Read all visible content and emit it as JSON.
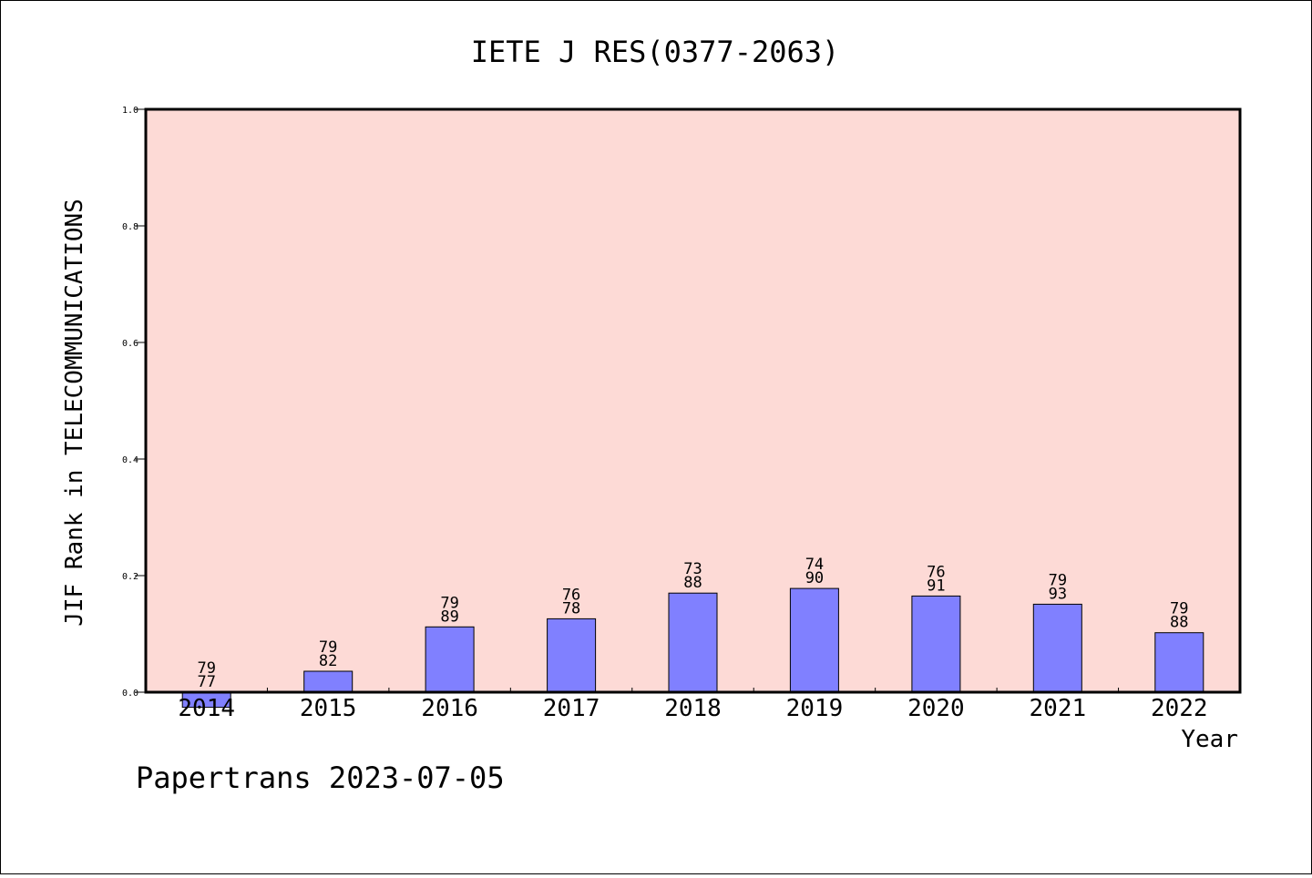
{
  "chart_data": {
    "type": "bar",
    "title": "IETE J RES(0377-2063)",
    "ylabel": "JIF Rank in TELECOMMUNICATIONS",
    "xlabel": "Year",
    "ylim": [
      0.0,
      1.0
    ],
    "yticks": [
      "0.0",
      "0.2",
      "0.4",
      "0.6",
      "0.8",
      "1.0"
    ],
    "grid": false,
    "categories": [
      "2014",
      "2015",
      "2016",
      "2017",
      "2018",
      "2019",
      "2020",
      "2021",
      "2022"
    ],
    "values": [
      -0.026,
      0.036,
      0.112,
      0.126,
      0.17,
      0.178,
      0.165,
      0.151,
      0.102
    ],
    "rank": [
      "77",
      "82",
      "89",
      "78",
      "88",
      "90",
      "91",
      "93",
      "88"
    ],
    "total": [
      "79",
      "79",
      "79",
      "76",
      "73",
      "74",
      "76",
      "79",
      "79"
    ],
    "plot_background": "#fddad6",
    "bar_color": "#8080ff"
  },
  "footer": "Papertrans 2023-07-05"
}
